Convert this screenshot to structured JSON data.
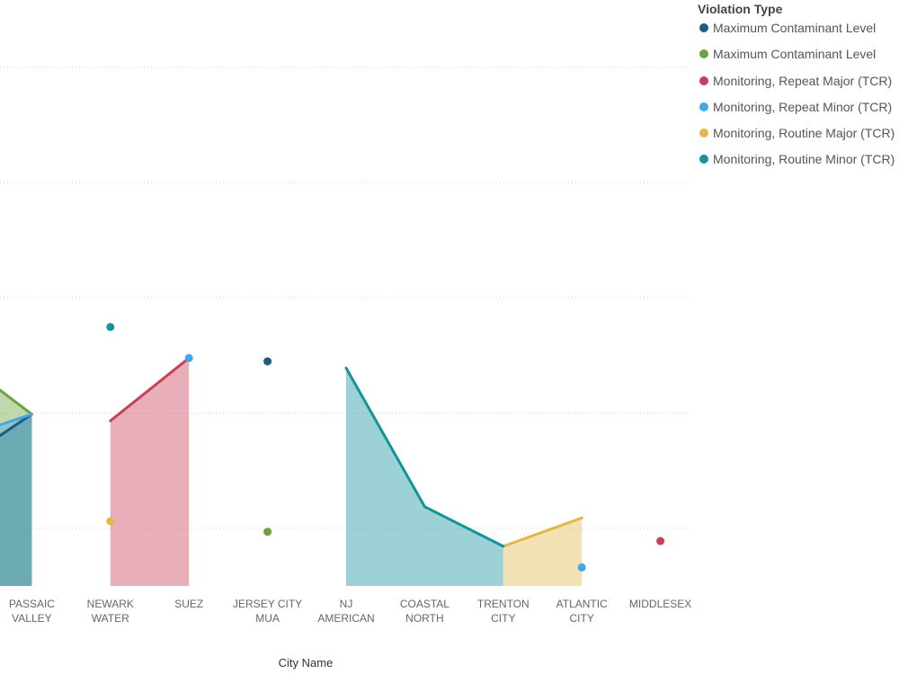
{
  "chart_data": {
    "type": "area",
    "xlabel": "City Name",
    "ylabel": "",
    "legend_title": "Violation Type",
    "legend_position": "top-right",
    "ylim": [
      0,
      8.8
    ],
    "grid": true,
    "categories": [
      {
        "label": [
          "",
          ""
        ]
      },
      {
        "label": [
          "PASSAIC",
          "VALLEY"
        ]
      },
      {
        "label": [
          "NEWARK",
          "WATER"
        ]
      },
      {
        "label": [
          "SUEZ",
          ""
        ]
      },
      {
        "label": [
          "JERSEY CITY",
          "MUA"
        ]
      },
      {
        "label": [
          "NJ",
          "AMERICAN"
        ]
      },
      {
        "label": [
          "COASTAL",
          "NORTH"
        ]
      },
      {
        "label": [
          "TRENTON",
          "CITY"
        ]
      },
      {
        "label": [
          "ATLANTIC",
          "CITY"
        ]
      },
      {
        "label": [
          "MIDDLESEX",
          ""
        ]
      }
    ],
    "series": [
      {
        "name": "Maximum Contaminant Level",
        "color": "#1f5a82",
        "values": [
          1.8,
          2.6,
          null,
          null,
          3.4,
          null,
          null,
          null,
          null,
          null
        ]
      },
      {
        "name": "Maximum Contaminant Level",
        "color": "#6ba33f",
        "values": [
          3.5,
          2.6,
          null,
          null,
          0.82,
          null,
          null,
          null,
          null,
          null
        ]
      },
      {
        "name": "Monitoring, Repeat Major (TCR)",
        "color": "#c7405a",
        "values": [
          null,
          null,
          2.5,
          3.45,
          null,
          null,
          null,
          null,
          null,
          0.68
        ]
      },
      {
        "name": "Monitoring, Repeat Minor (TCR)",
        "color": "#41a8e6",
        "values": [
          2.2,
          2.6,
          null,
          3.45,
          null,
          null,
          null,
          null,
          0.28,
          null
        ]
      },
      {
        "name": "Monitoring, Routine Major (TCR)",
        "color": "#e0b84a",
        "values": [
          null,
          null,
          0.98,
          null,
          null,
          null,
          null,
          0.6,
          1.03,
          null
        ]
      },
      {
        "name": "Monitoring, Routine Minor (TCR)",
        "color": "#14939a",
        "values": [
          null,
          null,
          3.92,
          null,
          null,
          3.3,
          1.2,
          0.6,
          null,
          null
        ]
      }
    ]
  }
}
